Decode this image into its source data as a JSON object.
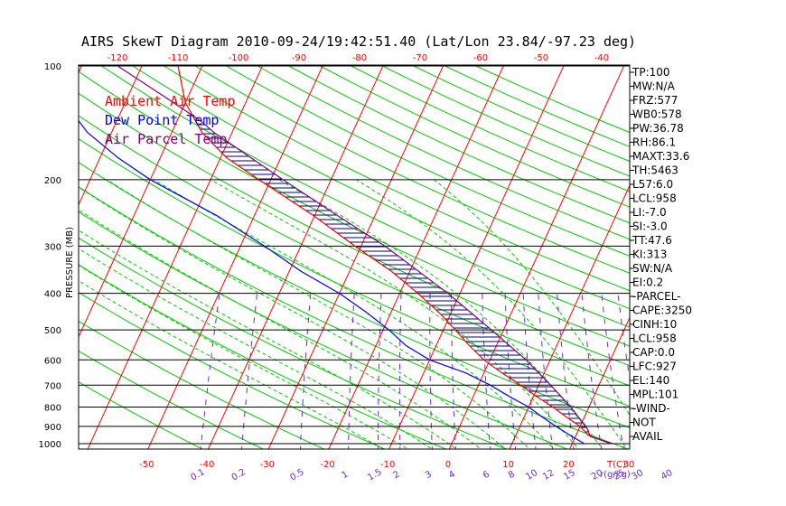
{
  "chart_data": {
    "type": "line",
    "title": "AIRS SkewT Diagram 2010-09-24/19:42:51.40 (Lat/Lon 23.84/-97.23 deg)",
    "ylabel": "PRESSURE (MB)",
    "xlabel": "T(C)",
    "mixing_ratio_label": "r(g/kg)",
    "y_scale": "log",
    "ylim": [
      1050,
      100
    ],
    "pressure_ticks": [
      100,
      200,
      300,
      400,
      500,
      600,
      700,
      800,
      900,
      1000
    ],
    "bottom_temp_ticks": [
      -50,
      -40,
      -30,
      -20,
      -10,
      0,
      10,
      20,
      30
    ],
    "top_temp_ticks": [
      -120,
      -110,
      -100,
      -90,
      -80,
      -70,
      -60,
      -50,
      -40
    ],
    "mixing_ratio_ticks": [
      "0.1",
      "0.2",
      "0.5",
      "1",
      "1.5",
      "2",
      "3",
      "4",
      "6",
      "8",
      "10",
      "12",
      "15",
      "20",
      "25",
      "30",
      "40"
    ],
    "legend": [
      {
        "label": "Ambient Air Temp",
        "color": "#ff0000"
      },
      {
        "label": "Dew Point Temp",
        "color": "#0000ff"
      },
      {
        "label": "Air Parcel Temp",
        "color": "#800080"
      }
    ],
    "series": [
      {
        "name": "Ambient Air Temp",
        "color": "#ff0000",
        "pressure": [
          1000,
          950,
          900,
          850,
          800,
          750,
          700,
          650,
          600,
          550,
          500,
          450,
          400,
          350,
          300,
          250,
          200,
          175,
          150,
          125,
          100
        ],
        "temperature": [
          26.5,
          22,
          20,
          17,
          14,
          10.5,
          7,
          3,
          -1,
          -4.5,
          -8,
          -12,
          -17,
          -23,
          -31,
          -40,
          -52,
          -59,
          -65,
          -70,
          -74
        ]
      },
      {
        "name": "Dew Point Temp",
        "color": "#0000ff",
        "pressure": [
          1000,
          950,
          900,
          850,
          800,
          750,
          700,
          650,
          600,
          550,
          500,
          450,
          400,
          350,
          300,
          250,
          200,
          175,
          150,
          125,
          100
        ],
        "temperature": [
          22,
          19,
          16,
          13,
          10,
          6,
          2,
          -3,
          -10,
          -15,
          -19,
          -24,
          -30,
          -38,
          -46,
          -56,
          -70,
          -77,
          -84,
          -90,
          -96
        ]
      },
      {
        "name": "Air Parcel Temp",
        "color": "#800080",
        "pressure": [
          1000,
          958,
          900,
          850,
          800,
          700,
          600,
          500,
          400,
          300,
          250,
          200,
          150,
          140,
          125,
          100
        ],
        "temperature": [
          26.5,
          22.5,
          21,
          19,
          17,
          12,
          6,
          -2,
          -12,
          -26,
          -36,
          -48,
          -63,
          -66,
          -72,
          -84
        ]
      }
    ]
  },
  "indices": [
    "TP:100",
    "MW:N/A",
    "FRZ:577",
    "WB0:578",
    "PW:36.78",
    "RH:86.1",
    "MAXT:33.6",
    "TH:5463",
    "L57:6.0",
    "LCL:958",
    "LI:-7.0",
    "SI:-3.0",
    "TT:47.6",
    "KI:313",
    "SW:N/A",
    "EI:0.2",
    "-PARCEL-",
    "CAPE:3250",
    "CINH:10",
    "LCL:958",
    "CAP:0.0",
    "LFC:927",
    "EL:140",
    "MPL:101",
    "-WIND-",
    "NOT",
    "AVAIL"
  ],
  "colors": {
    "isotherm": "#ff0000",
    "dry_adiabat": "#00cc00",
    "moist_adiabat": "#00cc00",
    "mixing_ratio": "#6a2dd0",
    "isobar": "#000000",
    "hatch": "#000080"
  }
}
